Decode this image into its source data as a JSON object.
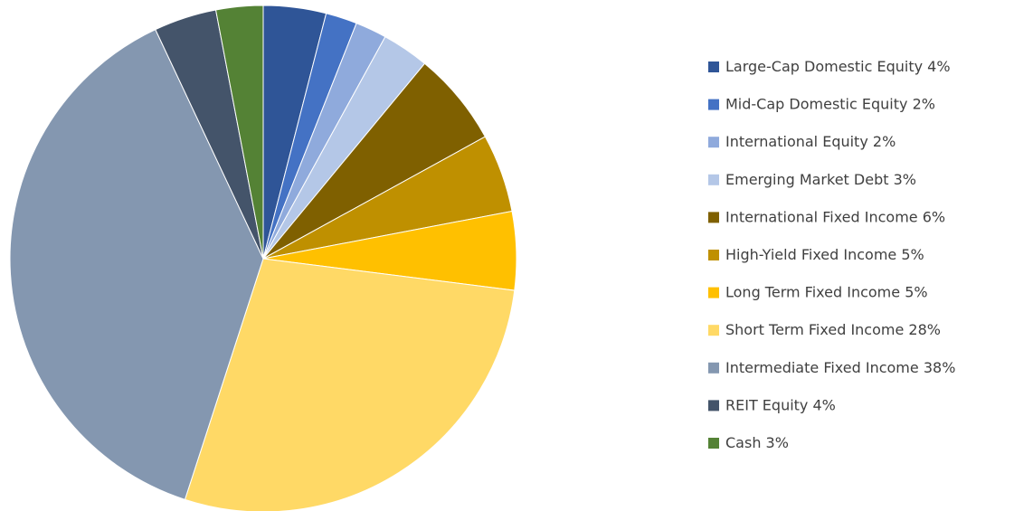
{
  "chart_data": {
    "type": "pie",
    "categories": [
      "Large-Cap Domestic Equity",
      "Mid-Cap Domestic Equity",
      "International Equity",
      "Emerging Market Debt",
      "International Fixed Income",
      "High-Yield Fixed Income",
      "Long Term Fixed Income",
      "Short Term Fixed Income",
      "Intermediate Fixed Income",
      "REIT Equity",
      "Cash"
    ],
    "values": [
      4,
      2,
      2,
      3,
      6,
      5,
      5,
      28,
      38,
      4,
      3
    ],
    "value_labels": [
      "4%",
      "2%",
      "2%",
      "3%",
      "6%",
      "5%",
      "5%",
      "28%",
      "38%",
      "4%",
      "3%"
    ],
    "colors": [
      "#2f5597",
      "#4472c4",
      "#8faadc",
      "#b4c7e7",
      "#7f6000",
      "#bf9000",
      "#ffc000",
      "#ffd966",
      "#8497b0",
      "#44546a",
      "#548235"
    ],
    "legend": "right"
  }
}
